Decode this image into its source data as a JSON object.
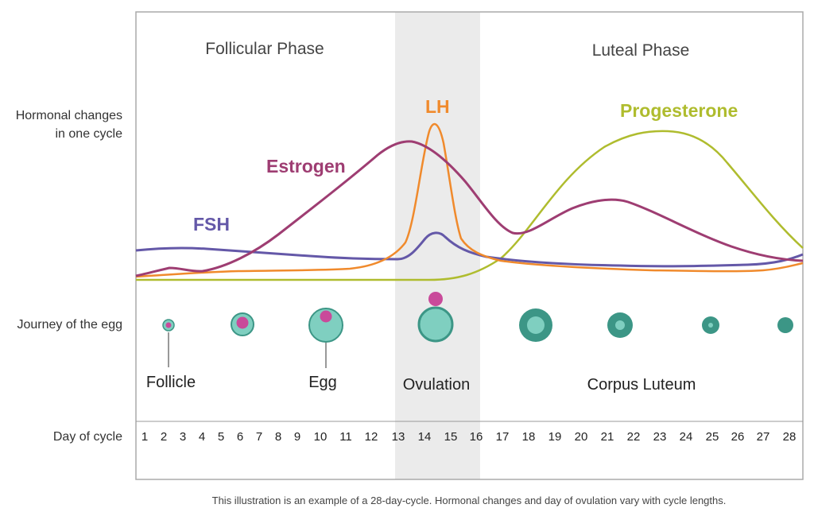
{
  "labels": {
    "hormonal_line1": "Hormonal changes",
    "hormonal_line2": "in one cycle",
    "journey": "Journey of the egg",
    "day_of_cycle": "Day of cycle"
  },
  "phases": {
    "follicular": "Follicular Phase",
    "luteal": "Luteal Phase"
  },
  "hormones": {
    "fsh": {
      "label": "FSH",
      "color": "#6458a8"
    },
    "estrogen": {
      "label": "Estrogen",
      "color": "#9e3d72"
    },
    "lh": {
      "label": "LH",
      "color": "#f08a2c"
    },
    "progesterone": {
      "label": "Progesterone",
      "color": "#afbc2e"
    }
  },
  "egg_labels": {
    "follicle": "Follicle",
    "egg": "Egg",
    "ovulation": "Ovulation",
    "corpus_luteum": "Corpus Luteum"
  },
  "days": [
    "1",
    "2",
    "3",
    "4",
    "5",
    "6",
    "7",
    "8",
    "9",
    "10",
    "11",
    "12",
    "13",
    "14",
    "15",
    "16",
    "17",
    "18",
    "19",
    "20",
    "21",
    "22",
    "23",
    "24",
    "25",
    "26",
    "27",
    "28"
  ],
  "footnote": "This illustration is an example of a 28-day-cycle. Hormonal changes and day of ovulation vary with cycle lengths.",
  "colors": {
    "ovulation_band": "#ebebeb",
    "frame": "#aaaaaa",
    "egg_pink": "#c94a9a",
    "follicle_light": "#7fcfc0",
    "follicle_dark": "#3c9686"
  }
}
